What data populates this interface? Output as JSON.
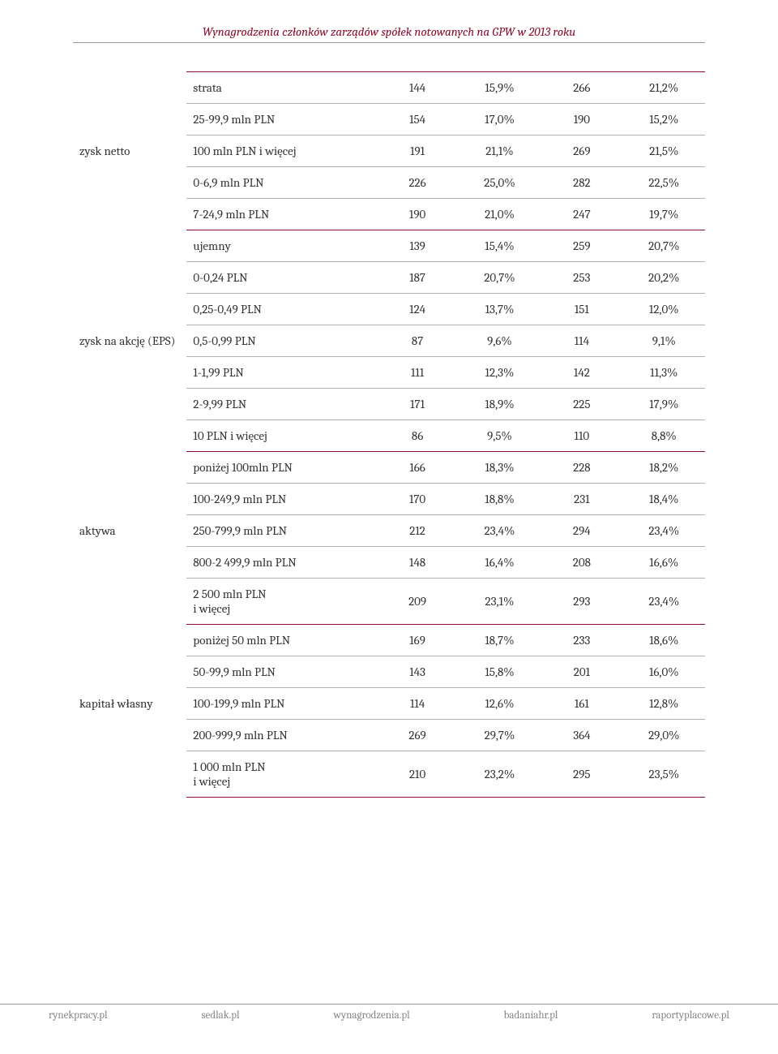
{
  "title_color": "#8b0f2e",
  "accent_color": "#8b0f2e",
  "title": "Wynagrodzenia członków zarządów spółek notowanych na GPW w 2013 roku",
  "sections": [
    {
      "header": "zysk netto",
      "rows": [
        {
          "label": "strata",
          "v1": "144",
          "p1": "15,9%",
          "v2": "266",
          "p2": "21,2%"
        },
        {
          "label": "25-99,9 mln PLN",
          "v1": "154",
          "p1": "17,0%",
          "v2": "190",
          "p2": "15,2%"
        },
        {
          "label": "100 mln PLN i więcej",
          "v1": "191",
          "p1": "21,1%",
          "v2": "269",
          "p2": "21,5%"
        },
        {
          "label": "0-6,9 mln PLN",
          "v1": "226",
          "p1": "25,0%",
          "v2": "282",
          "p2": "22,5%"
        },
        {
          "label": "7-24,9 mln PLN",
          "v1": "190",
          "p1": "21,0%",
          "v2": "247",
          "p2": "19,7%"
        }
      ]
    },
    {
      "header": "zysk na akcję (EPS)",
      "rows": [
        {
          "label": "ujemny",
          "v1": "139",
          "p1": "15,4%",
          "v2": "259",
          "p2": "20,7%"
        },
        {
          "label": "0-0,24 PLN",
          "v1": "187",
          "p1": "20,7%",
          "v2": "253",
          "p2": "20,2%"
        },
        {
          "label": "0,25-0,49 PLN",
          "v1": "124",
          "p1": "13,7%",
          "v2": "151",
          "p2": "12,0%"
        },
        {
          "label": "0,5-0,99 PLN",
          "v1": "87",
          "p1": "9,6%",
          "v2": "114",
          "p2": "9,1%"
        },
        {
          "label": "1-1,99 PLN",
          "v1": "111",
          "p1": "12,3%",
          "v2": "142",
          "p2": "11,3%"
        },
        {
          "label": "2-9,99 PLN",
          "v1": "171",
          "p1": "18,9%",
          "v2": "225",
          "p2": "17,9%"
        },
        {
          "label": "10 PLN i więcej",
          "v1": "86",
          "p1": "9,5%",
          "v2": "110",
          "p2": "8,8%"
        }
      ]
    },
    {
      "header": "aktywa",
      "rows": [
        {
          "label": "poniżej 100mln PLN",
          "v1": "166",
          "p1": "18,3%",
          "v2": "228",
          "p2": "18,2%"
        },
        {
          "label": "100-249,9 mln PLN",
          "v1": "170",
          "p1": "18,8%",
          "v2": "231",
          "p2": "18,4%"
        },
        {
          "label": "250-799,9 mln PLN",
          "v1": "212",
          "p1": "23,4%",
          "v2": "294",
          "p2": "23,4%"
        },
        {
          "label": "800-2 499,9 mln PLN",
          "v1": "148",
          "p1": "16,4%",
          "v2": "208",
          "p2": "16,6%"
        },
        {
          "label": "2 500 mln PLN\ni więcej",
          "v1": "209",
          "p1": "23,1%",
          "v2": "293",
          "p2": "23,4%"
        }
      ]
    },
    {
      "header": "kapitał własny",
      "rows": [
        {
          "label": "poniżej 50 mln PLN",
          "v1": "169",
          "p1": "18,7%",
          "v2": "233",
          "p2": "18,6%"
        },
        {
          "label": "50-99,9 mln PLN",
          "v1": "143",
          "p1": "15,8%",
          "v2": "201",
          "p2": "16,0%"
        },
        {
          "label": "100-199,9 mln PLN",
          "v1": "114",
          "p1": "12,6%",
          "v2": "161",
          "p2": "12,8%"
        },
        {
          "label": "200-999,9 mln PLN",
          "v1": "269",
          "p1": "29,7%",
          "v2": "364",
          "p2": "29,0%"
        },
        {
          "label": "1 000 mln PLN\ni więcej",
          "v1": "210",
          "p1": "23,2%",
          "v2": "295",
          "p2": "23,5%"
        }
      ]
    }
  ],
  "footer": [
    "rynekpracy.pl",
    "sedlak.pl",
    "wynagrodzenia.pl",
    "badaniahr.pl",
    "raportyplacowe.pl"
  ]
}
